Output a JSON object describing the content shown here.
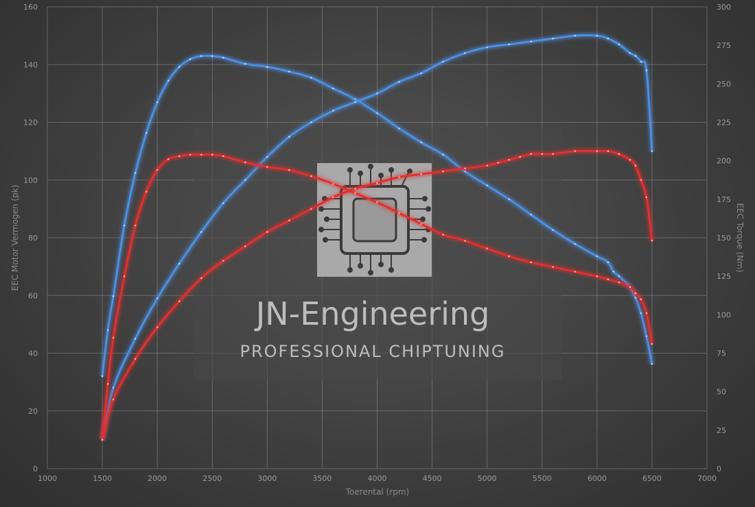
{
  "chart_data": {
    "type": "line",
    "xlabel": "Toerental (rpm)",
    "ylabel_left": "EEC Motor Vermogen (pk)",
    "ylabel_right": "EEC Torque (Nm)",
    "xlim": [
      1000,
      7000
    ],
    "ylim_left": [
      0,
      160
    ],
    "ylim_right": [
      0,
      300
    ],
    "x_ticks": [
      1000,
      1500,
      2000,
      2500,
      3000,
      3500,
      4000,
      4500,
      5000,
      5500,
      6000,
      6500,
      7000
    ],
    "y_ticks_left": [
      0,
      20,
      40,
      60,
      80,
      100,
      120,
      140,
      160
    ],
    "y_ticks_right": [
      0,
      25,
      50,
      75,
      100,
      125,
      150,
      175,
      200,
      225,
      250,
      275,
      300
    ],
    "grid": true,
    "colors": {
      "tuned": "#4d8fe0",
      "stock": "#e03030"
    },
    "series": [
      {
        "axis": "right",
        "color": "#4d8fe0",
        "x": [
          1500,
          1550,
          1600,
          1700,
          1800,
          1900,
          2000,
          2100,
          2200,
          2300,
          2400,
          2500,
          2600,
          2800,
          3000,
          3200,
          3400,
          3600,
          3800,
          4000,
          4200,
          4400,
          4600,
          4800,
          5000,
          5200,
          5400,
          5600,
          5800,
          6000,
          6100,
          6150,
          6200,
          6300,
          6350,
          6400,
          6450,
          6500
        ],
        "values": [
          60,
          90,
          112,
          158,
          192,
          218,
          238,
          252,
          261,
          266,
          268,
          268,
          267,
          263,
          261,
          258,
          254,
          247,
          240,
          231,
          221,
          212,
          204,
          193,
          184,
          175,
          165,
          155,
          146,
          138,
          134,
          128,
          125,
          118,
          111,
          101,
          86,
          68
        ]
      },
      {
        "axis": "left",
        "color": "#4d8fe0",
        "x": [
          1500,
          1600,
          1800,
          2000,
          2200,
          2400,
          2600,
          2800,
          3000,
          3200,
          3400,
          3600,
          3800,
          4000,
          4200,
          4400,
          4600,
          4800,
          5000,
          5200,
          5400,
          5600,
          5800,
          6000,
          6100,
          6200,
          6300,
          6350,
          6400,
          6450,
          6500
        ],
        "values": [
          10,
          28,
          45,
          59,
          71,
          82,
          92,
          100,
          108,
          115,
          120,
          124,
          127,
          130,
          134,
          137,
          141,
          144,
          146,
          147,
          148,
          149,
          150,
          150,
          149,
          147,
          144,
          143,
          141,
          138,
          110
        ]
      },
      {
        "axis": "right",
        "color": "#e03030",
        "x": [
          1500,
          1550,
          1600,
          1700,
          1800,
          1900,
          2000,
          2100,
          2200,
          2300,
          2400,
          2500,
          2600,
          2800,
          3000,
          3200,
          3400,
          3600,
          3800,
          4000,
          4200,
          4400,
          4600,
          4800,
          5000,
          5200,
          5400,
          5600,
          5800,
          6000,
          6100,
          6200,
          6300,
          6350,
          6400,
          6450,
          6500
        ],
        "values": [
          20,
          55,
          85,
          125,
          158,
          180,
          194,
          201,
          203,
          204,
          204,
          204,
          203,
          199,
          196,
          194,
          190,
          185,
          179,
          173,
          166,
          159,
          152,
          148,
          143,
          138,
          134,
          131,
          128,
          125,
          123,
          121,
          118,
          114,
          110,
          101,
          81
        ]
      },
      {
        "axis": "left",
        "color": "#e03030",
        "x": [
          1500,
          1600,
          1800,
          2000,
          2200,
          2400,
          2600,
          2800,
          3000,
          3200,
          3400,
          3600,
          3800,
          4000,
          4200,
          4400,
          4600,
          4800,
          5000,
          5100,
          5200,
          5300,
          5400,
          5500,
          5600,
          5800,
          6000,
          6100,
          6200,
          6300,
          6350,
          6400,
          6450,
          6500
        ],
        "values": [
          10,
          24,
          38,
          49,
          58,
          66,
          72,
          77,
          82,
          86,
          90,
          94,
          97,
          99,
          101,
          102,
          103,
          104,
          105,
          106,
          107,
          108,
          109,
          109,
          109,
          110,
          110,
          110,
          109,
          107,
          105,
          100,
          94,
          79
        ]
      }
    ]
  },
  "logo": {
    "title": "JN-Engineering",
    "subtitle": "PROFESSIONAL CHIPTUNING"
  }
}
